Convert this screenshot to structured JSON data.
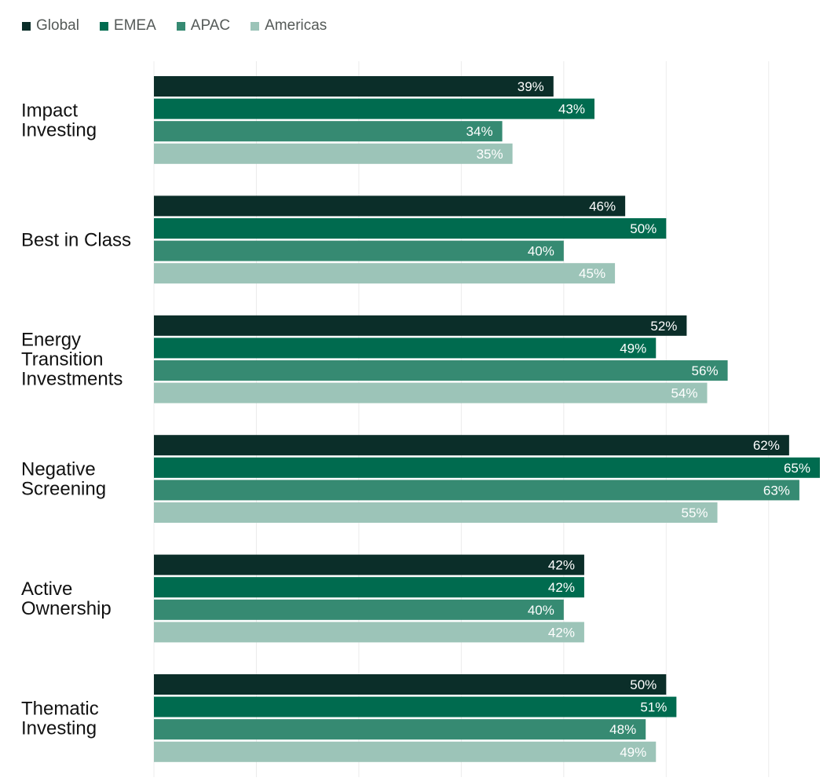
{
  "chart_data": {
    "type": "bar",
    "orientation": "horizontal",
    "categories": [
      [
        "Impact",
        "Investing"
      ],
      [
        "Best in Class"
      ],
      [
        "Energy",
        "Transition",
        "Investments"
      ],
      [
        "Negative",
        "Screening"
      ],
      [
        "Active",
        "Ownership"
      ],
      [
        "Thematic",
        "Investing"
      ]
    ],
    "series": [
      {
        "name": "Global",
        "color": "#0b2e29",
        "values": [
          39,
          46,
          52,
          62,
          42,
          50
        ]
      },
      {
        "name": "EMEA",
        "color": "#006b4f",
        "values": [
          43,
          50,
          49,
          65,
          42,
          51
        ]
      },
      {
        "name": "APAC",
        "color": "#368a72",
        "values": [
          34,
          40,
          56,
          63,
          40,
          48
        ]
      },
      {
        "name": "Americas",
        "color": "#9cc4b8",
        "values": [
          35,
          45,
          54,
          55,
          42,
          49
        ]
      }
    ],
    "value_suffix": "%",
    "xlim": [
      0,
      65
    ],
    "grid": true,
    "legend_position": "top-left",
    "title": "",
    "xlabel": "",
    "ylabel": ""
  }
}
